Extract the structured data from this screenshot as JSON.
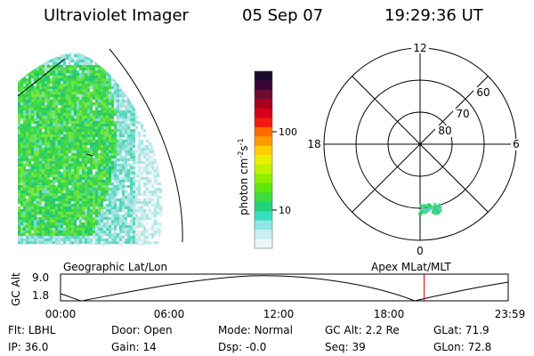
{
  "header": {
    "title": "Ultraviolet Imager",
    "date": "05 Sep 07",
    "time": "19:29:36 UT"
  },
  "colorbar": {
    "unit": "photon cm",
    "unit_exp1": "-2",
    "unit_mid": "s",
    "unit_exp2": "-1",
    "ticks": [
      "100",
      "10"
    ],
    "colors": [
      "#1a0a2e",
      "#3a0638",
      "#6e0a2e",
      "#a6001e",
      "#d6001a",
      "#f01a10",
      "#ff6a00",
      "#ff9a00",
      "#ffcc00",
      "#e8ee00",
      "#c0f000",
      "#8cee00",
      "#5ee610",
      "#3cdc3c",
      "#20d27a",
      "#3adcc0",
      "#8ee6e8",
      "#c8eef0",
      "#eaf6f6"
    ]
  },
  "polar_plot": {
    "mlt_labels": [
      "12",
      "18",
      "6",
      "0"
    ],
    "lat_labels": [
      "60",
      "70",
      "80"
    ]
  },
  "timeline": {
    "ylabel": "GC Alt",
    "yticks": [
      "9.0",
      "1.8"
    ],
    "left_label": "Geographic Lat/Lon",
    "right_label": "Apex MLat/MLT",
    "xticks": [
      "00:00",
      "06:00",
      "12:00",
      "18:00",
      "23:59"
    ],
    "current_hour": 19.49,
    "marker_color": "#e00000"
  },
  "status": {
    "row1": [
      {
        "label": "Flt:",
        "value": "LBHL"
      },
      {
        "label": "Door:",
        "value": "Open"
      },
      {
        "label": "Mode:",
        "value": "Normal"
      },
      {
        "label": "GC Alt:",
        "value": "2.2 Re"
      },
      {
        "label": "GLat:",
        "value": "71.9"
      }
    ],
    "row2": [
      {
        "label": "IP:",
        "value": "36.0"
      },
      {
        "label": "Gain:",
        "value": "14"
      },
      {
        "label": "Dsp:",
        "value": "-0.0"
      },
      {
        "label": "Seq:",
        "value": "39"
      },
      {
        "label": "GLon:",
        "value": "72.8"
      }
    ]
  }
}
